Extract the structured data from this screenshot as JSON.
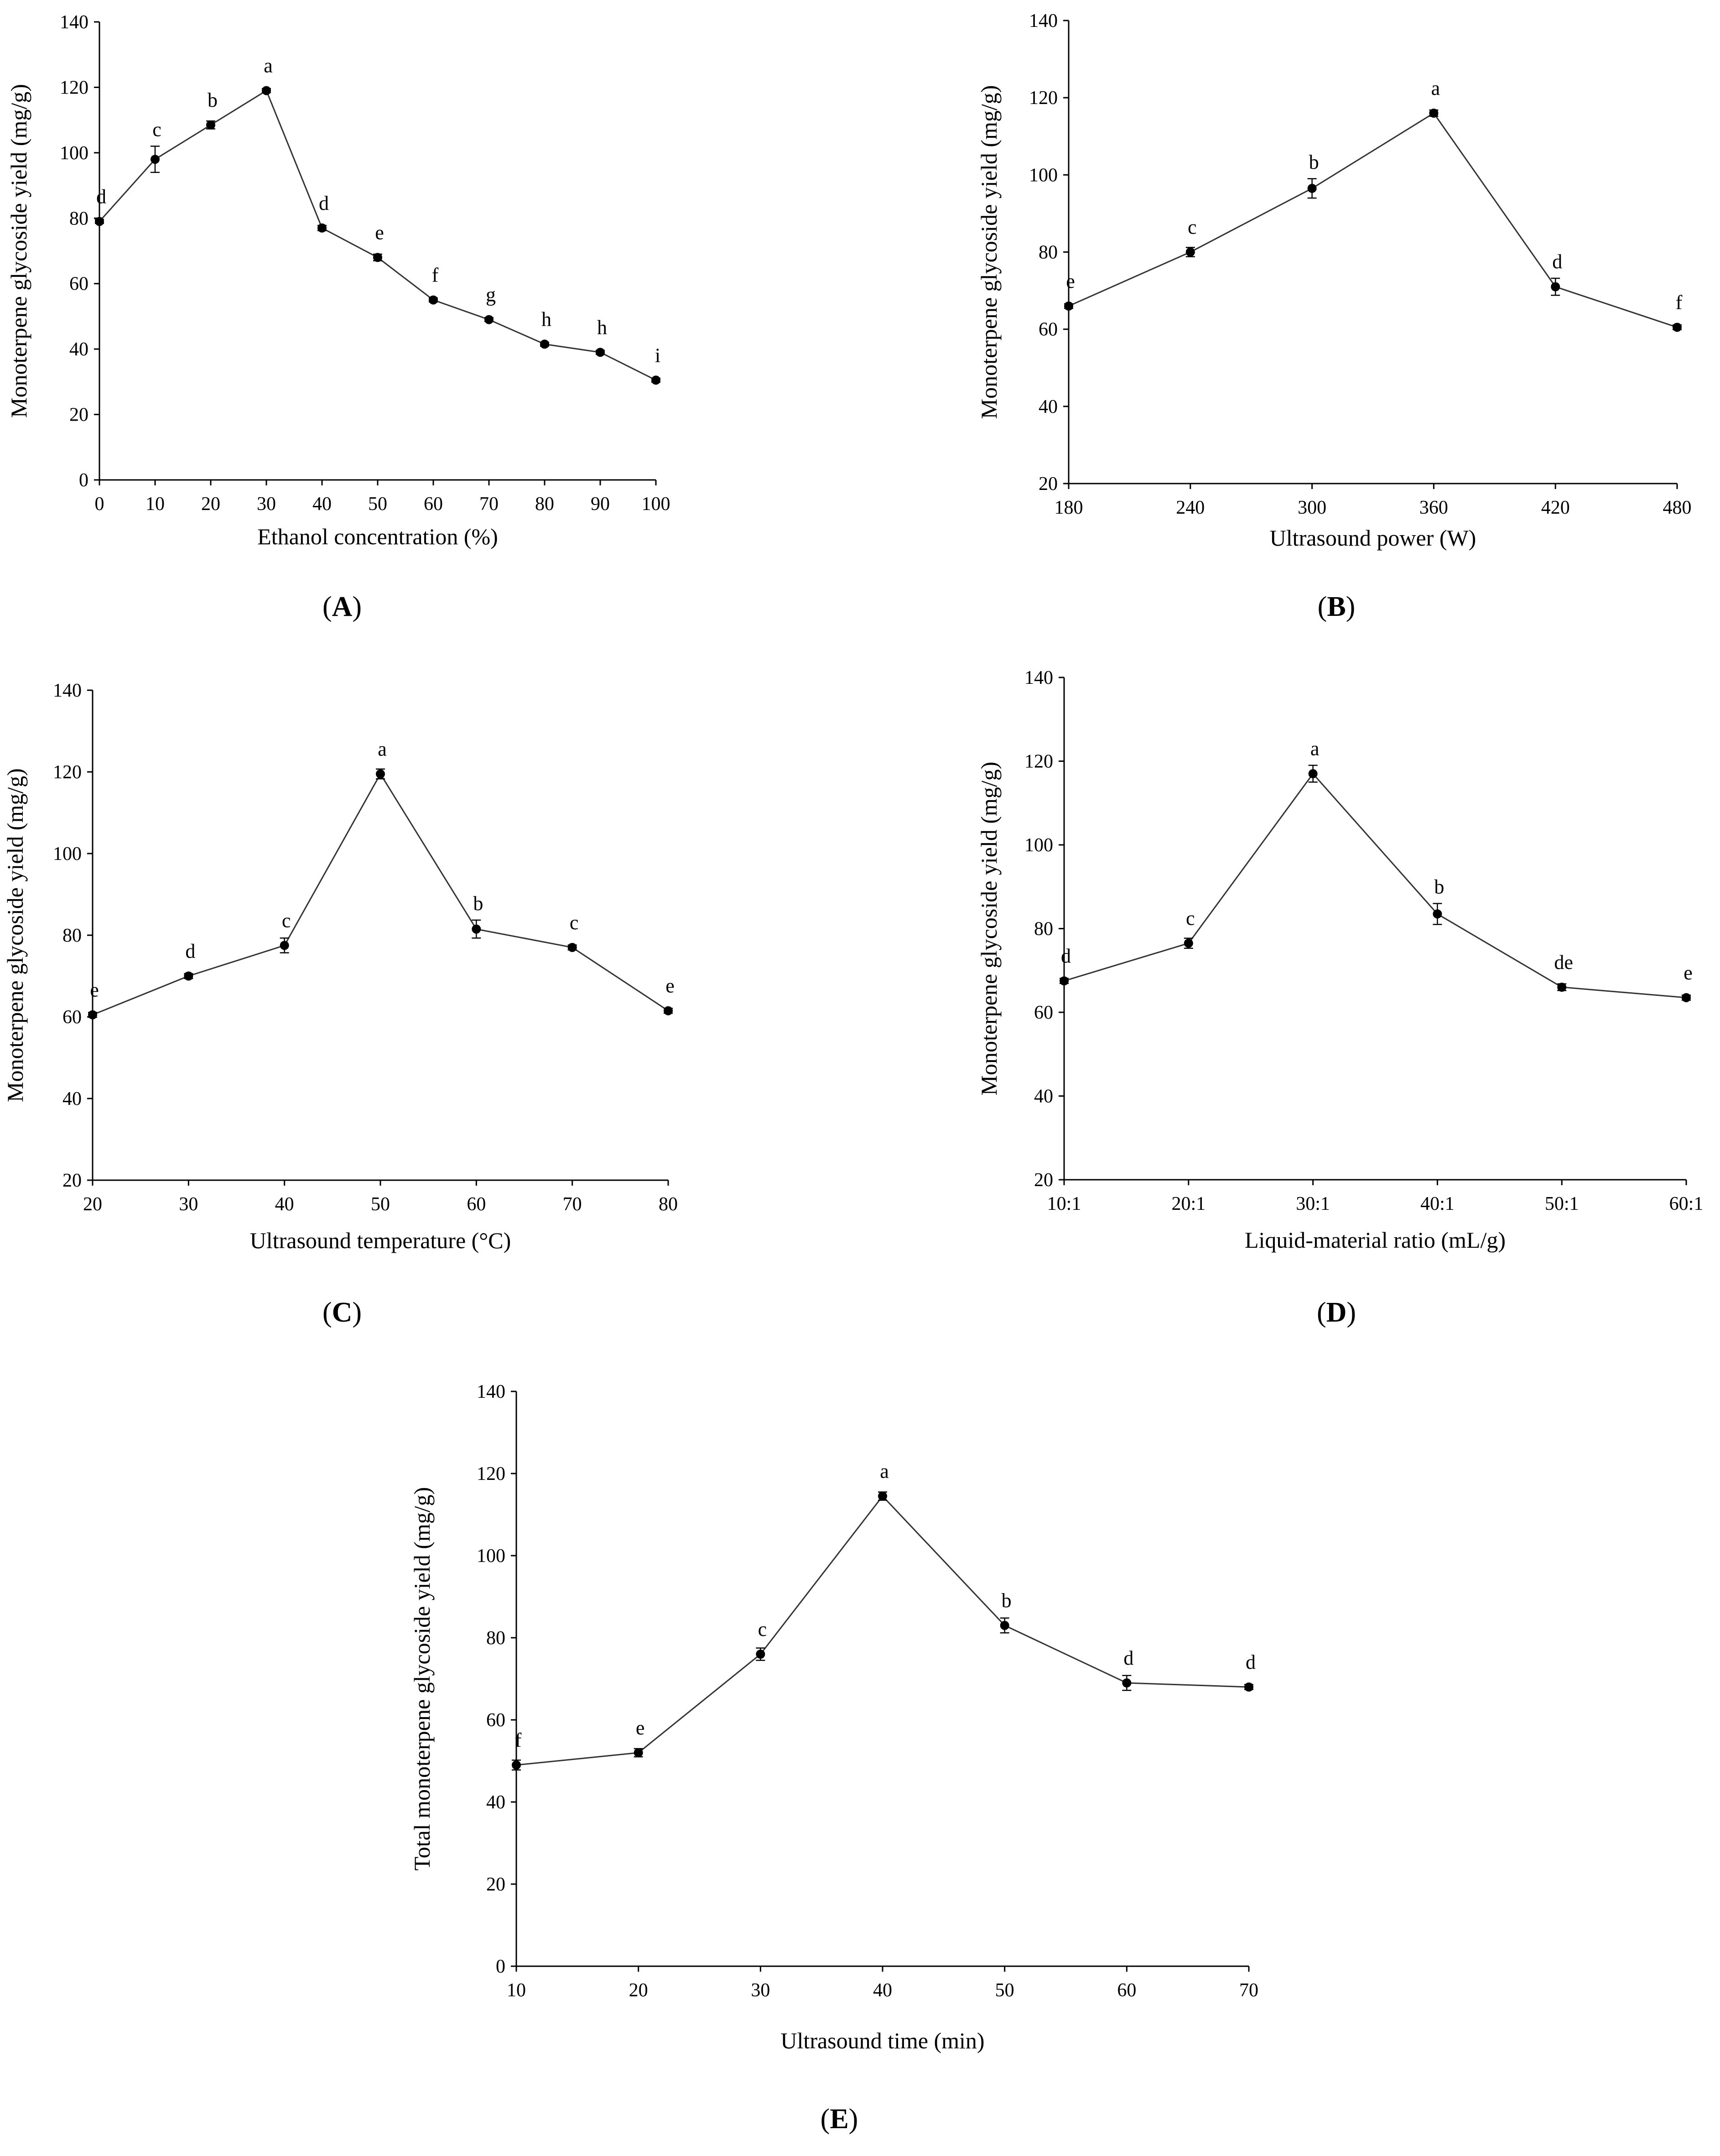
{
  "chart_data": [
    {
      "type": "line",
      "panel_label": "A",
      "xlabel": "Ethanol concentration (%)",
      "ylabel": "Monoterpene glycoside yield (mg/g)",
      "x_ticks": [
        "0",
        "10",
        "20",
        "30",
        "40",
        "50",
        "60",
        "70",
        "80",
        "90",
        "100"
      ],
      "y_ticks": [
        "0",
        "20",
        "40",
        "60",
        "80",
        "100",
        "120",
        "140"
      ],
      "xlim": [
        0,
        100
      ],
      "ylim": [
        0,
        140
      ],
      "x": [
        0,
        10,
        20,
        30,
        40,
        50,
        60,
        70,
        80,
        90,
        100
      ],
      "y": [
        79,
        98,
        108.5,
        119,
        77,
        68,
        55,
        49,
        41.5,
        39,
        30.5
      ],
      "err": [
        0.6,
        4,
        1.2,
        0.6,
        0.8,
        1,
        0.6,
        0.6,
        0.6,
        0.6,
        0.6
      ],
      "letters": [
        "d",
        "c",
        "b",
        "a",
        "d",
        "e",
        "f",
        "g",
        "h",
        "h",
        "i"
      ]
    },
    {
      "type": "line",
      "panel_label": "B",
      "xlabel": "Ultrasound power (W)",
      "ylabel": "Monoterpene glycoside yield (mg/g)",
      "x_ticks": [
        "180",
        "240",
        "300",
        "360",
        "420",
        "480"
      ],
      "y_ticks": [
        "20",
        "40",
        "60",
        "80",
        "100",
        "120",
        "140"
      ],
      "xlim": [
        180,
        480
      ],
      "ylim": [
        20,
        140
      ],
      "x": [
        180,
        240,
        300,
        360,
        420,
        480
      ],
      "y": [
        66,
        80,
        96.5,
        116,
        71,
        60.5
      ],
      "err": [
        0.6,
        1.2,
        2.5,
        0.8,
        2.2,
        0.6
      ],
      "letters": [
        "e",
        "c",
        "b",
        "a",
        "d",
        "f"
      ]
    },
    {
      "type": "line",
      "panel_label": "C",
      "xlabel": "Ultrasound temperature (°C)",
      "ylabel": "Monoterpene glycoside yield (mg/g)",
      "x_ticks": [
        "20",
        "30",
        "40",
        "50",
        "60",
        "70",
        "80"
      ],
      "y_ticks": [
        "20",
        "40",
        "60",
        "80",
        "100",
        "120",
        "140"
      ],
      "xlim": [
        20,
        80
      ],
      "ylim": [
        20,
        140
      ],
      "x": [
        20,
        30,
        40,
        50,
        60,
        70,
        80
      ],
      "y": [
        60.5,
        70,
        77.5,
        119.5,
        81.5,
        77,
        61.5
      ],
      "err": [
        0.6,
        0.6,
        1.8,
        1.2,
        2.2,
        0.6,
        0.6
      ],
      "letters": [
        "e",
        "d",
        "c",
        "a",
        "b",
        "c",
        "e"
      ]
    },
    {
      "type": "line",
      "panel_label": "D",
      "xlabel": "Liquid-material ratio (mL/g)",
      "ylabel": "Monoterpene glycoside yield (mg/g)",
      "x_ticks": [
        "10:1",
        "20:1",
        "30:1",
        "40:1",
        "50:1",
        "60:1"
      ],
      "y_ticks": [
        "20",
        "40",
        "60",
        "80",
        "100",
        "120",
        "140"
      ],
      "xlim": [
        10,
        60
      ],
      "ylim": [
        20,
        140
      ],
      "x": [
        10,
        20,
        30,
        40,
        50,
        60
      ],
      "y": [
        67.5,
        76.5,
        117,
        83.5,
        66,
        63.5
      ],
      "err": [
        0.6,
        1.2,
        2,
        2.5,
        0.8,
        0.6
      ],
      "letters": [
        "d",
        "c",
        "a",
        "b",
        "de",
        "e"
      ]
    },
    {
      "type": "line",
      "panel_label": "E",
      "xlabel": "Ultrasound time (min)",
      "ylabel": "Total monoterpene glycoside yield (mg/g)",
      "x_ticks": [
        "10",
        "20",
        "30",
        "40",
        "50",
        "60",
        "70"
      ],
      "y_ticks": [
        "0",
        "20",
        "40",
        "60",
        "80",
        "100",
        "120",
        "140"
      ],
      "xlim": [
        10,
        70
      ],
      "ylim": [
        0,
        140
      ],
      "x": [
        10,
        20,
        30,
        40,
        50,
        60,
        70
      ],
      "y": [
        49,
        52,
        76,
        114.5,
        83,
        69,
        68
      ],
      "err": [
        1.2,
        1,
        1.5,
        1,
        1.8,
        1.8,
        0.6
      ],
      "letters": [
        "f",
        "e",
        "c",
        "a",
        "b",
        "d",
        "d"
      ]
    }
  ]
}
